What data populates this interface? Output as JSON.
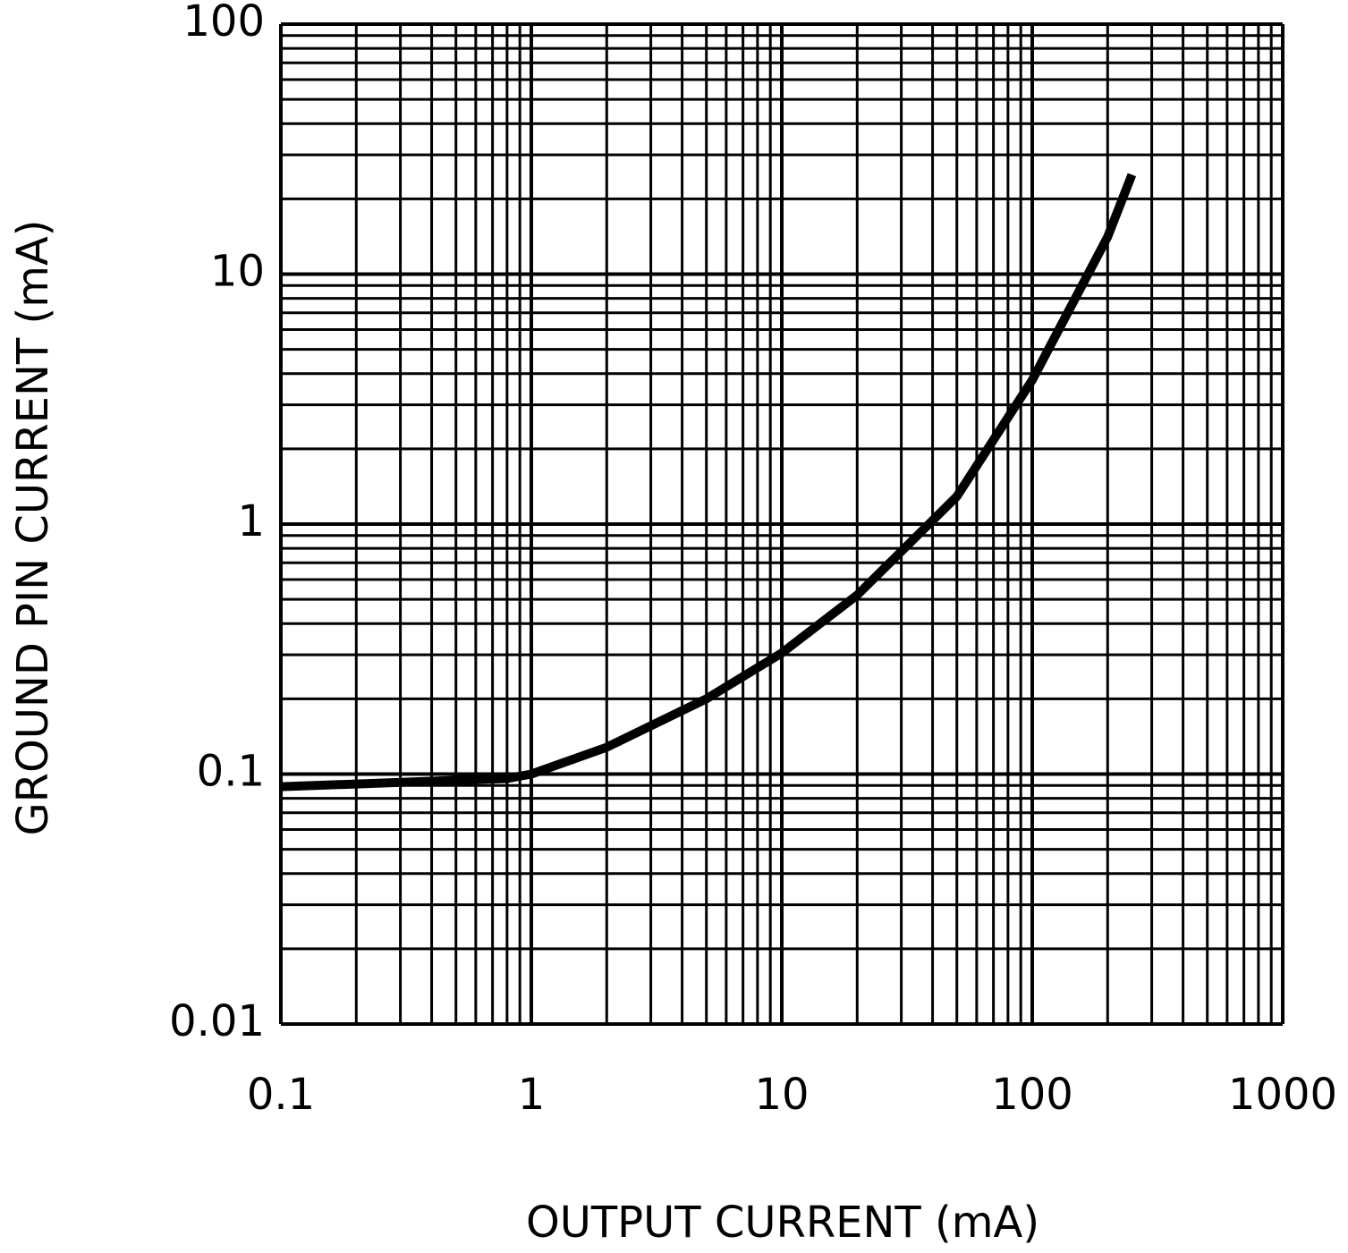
{
  "chart_data": {
    "type": "line",
    "xlabel": "OUTPUT CURRENT (mA)",
    "ylabel": "GROUND PIN CURRENT (mA)",
    "log_x": true,
    "log_y": true,
    "grid": true,
    "xlim": [
      0.1,
      1000
    ],
    "ylim": [
      0.01,
      100
    ],
    "xticks": [
      0.1,
      1,
      10,
      100,
      1000
    ],
    "yticks": [
      0.01,
      0.1,
      1,
      10,
      100
    ],
    "xgrid": [
      0.2,
      0.3,
      0.4,
      0.5,
      0.6,
      0.7,
      0.8,
      0.9,
      2,
      3,
      4,
      5,
      6,
      7,
      8,
      9,
      20,
      30,
      40,
      50,
      60,
      70,
      80,
      90,
      200,
      300,
      400,
      500,
      600,
      700,
      800,
      900
    ],
    "ygrid": [
      0.02,
      0.03,
      0.04,
      0.05,
      0.06,
      0.07,
      0.08,
      0.09,
      0.2,
      0.3,
      0.4,
      0.5,
      0.6,
      0.7,
      0.8,
      0.9,
      2,
      3,
      4,
      5,
      6,
      7,
      8,
      9,
      20,
      30,
      40,
      50,
      60,
      70,
      80,
      90
    ],
    "series": [
      {
        "color": "#000000",
        "x": [
          0.1,
          0.8,
          1,
          2,
          5,
          10,
          20,
          50,
          100,
          200,
          250
        ],
        "values": [
          0.089,
          0.096,
          0.1,
          0.128,
          0.2,
          0.305,
          0.52,
          1.29,
          3.77,
          14.1,
          25
        ]
      }
    ]
  }
}
